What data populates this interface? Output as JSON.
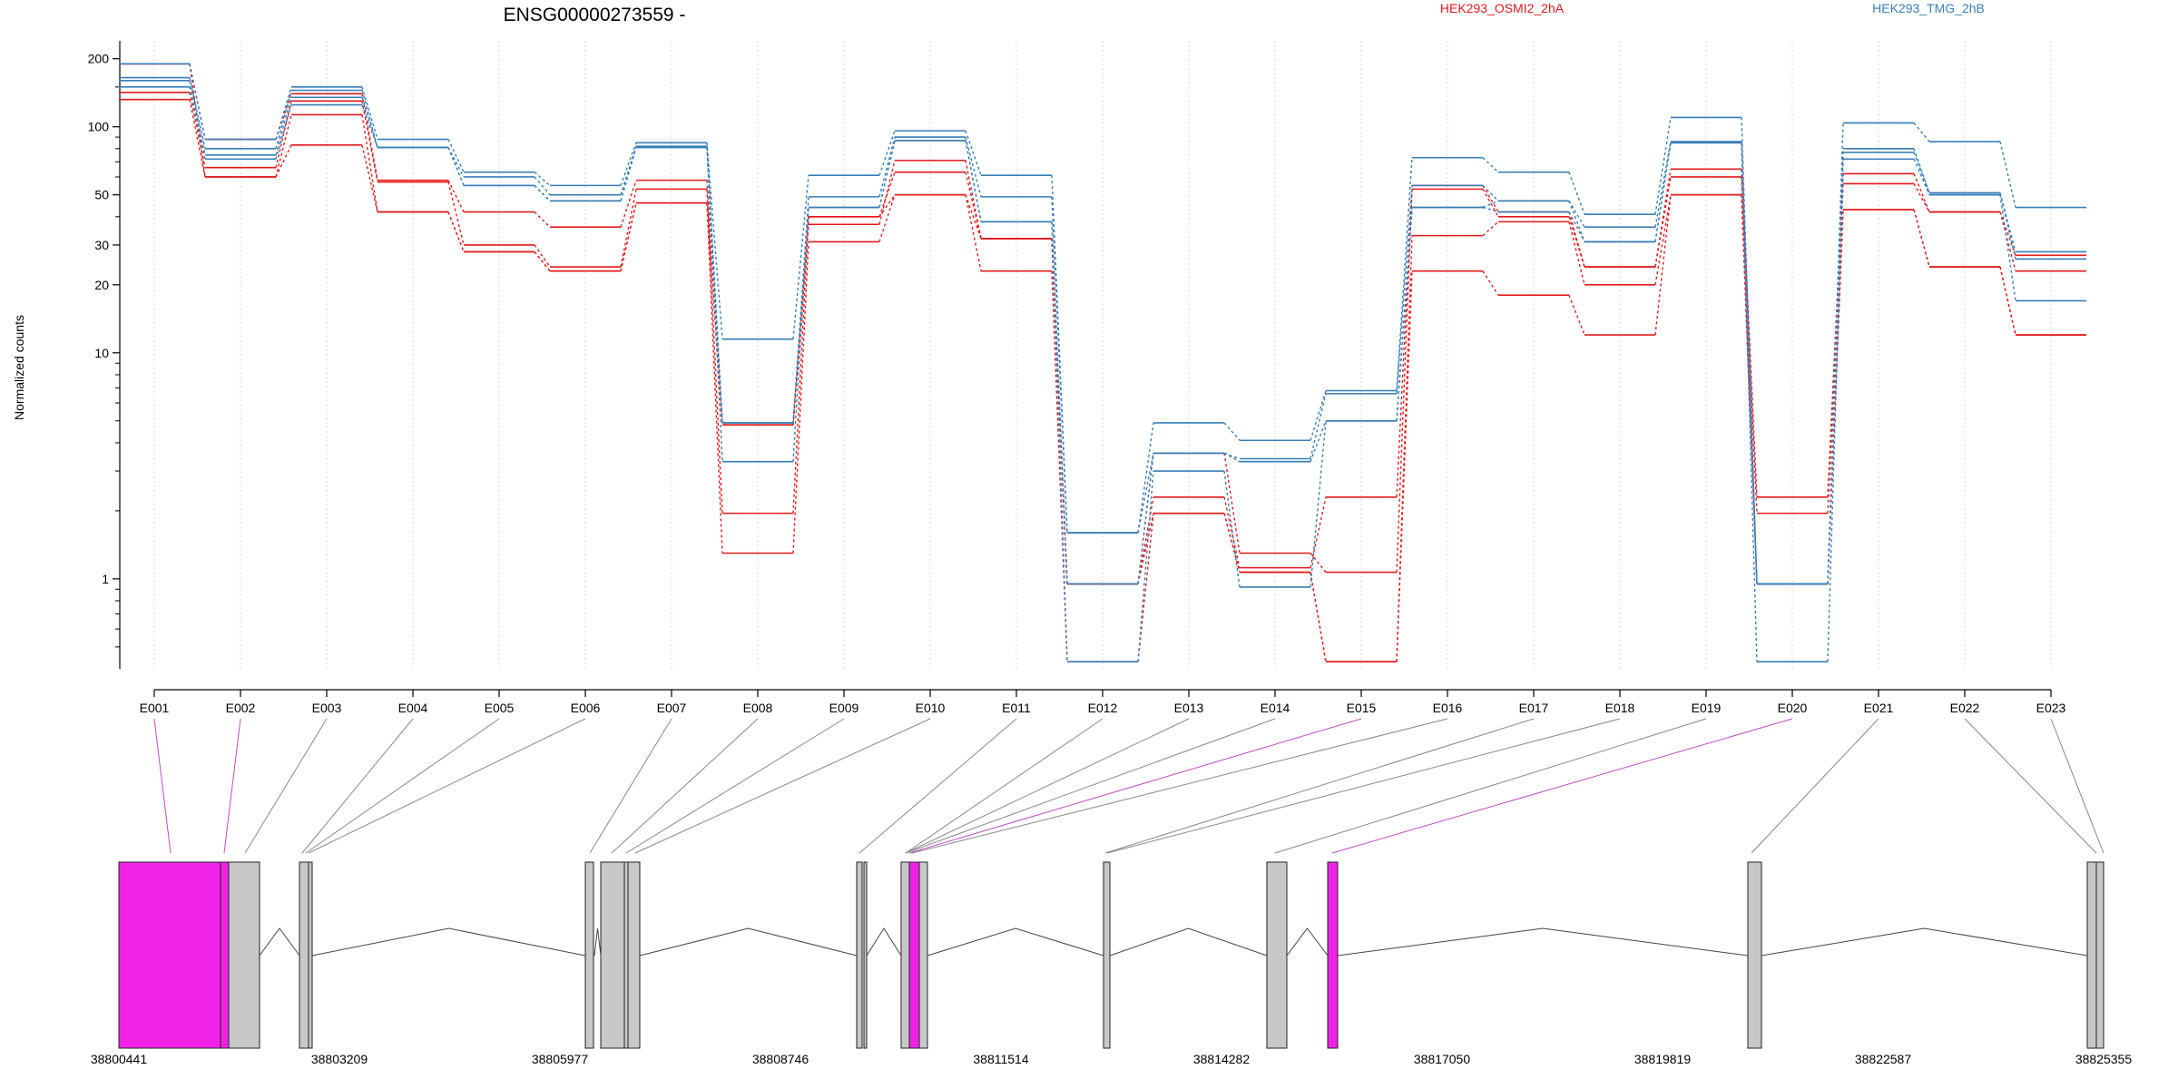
{
  "chart_data": {
    "type": "line",
    "title": "ENSG00000273559 -",
    "ylabel": "Normalized counts",
    "yscale": "log",
    "ylim": [
      0.4,
      240
    ],
    "yticks": [
      "1",
      "10",
      "20",
      "30",
      "50",
      "100",
      "200"
    ],
    "grid": "vertical dotted at exon centers",
    "legend_position": "top",
    "categories": [
      "E001",
      "E002",
      "E003",
      "E004",
      "E005",
      "E006",
      "E007",
      "E008",
      "E009",
      "E010",
      "E011",
      "E012",
      "E013",
      "E014",
      "E015",
      "E016",
      "E017",
      "E018",
      "E019",
      "E020",
      "E021",
      "E022",
      "E023"
    ],
    "series": [
      {
        "name": "HEK293_OSMI2_2hA",
        "color": "#e41a1c",
        "values": [
          190,
          88,
          140,
          58,
          42,
          36,
          58,
          4.8,
          37,
          71,
          32,
          0.95,
          2.3,
          1.12,
          2.3,
          55,
          42,
          24,
          65,
          2.3,
          62,
          42,
          27
        ]
      },
      {
        "name": "HEK293_OSMI2_2hA",
        "color": "#e41a1c",
        "values": [
          142,
          66,
          130,
          57,
          30,
          24,
          53,
          1.95,
          40,
          63,
          32,
          0.95,
          3.6,
          1.3,
          1.07,
          53,
          40,
          24,
          60,
          1.95,
          56,
          42,
          23
        ]
      },
      {
        "name": "HEK293_OSMI2_2hA",
        "color": "#e41a1c",
        "values": [
          132,
          60,
          113,
          42,
          28,
          23,
          46,
          1.3,
          31,
          50,
          23,
          0.43,
          1.95,
          1.07,
          0.43,
          33,
          38,
          20,
          50,
          0.95,
          43,
          24,
          12
        ]
      },
      {
        "name": "HEK293_OSMI2_2hA",
        "color": "#e41a1c",
        "values": [
          190,
          60,
          83,
          42,
          28,
          23,
          46,
          4.8,
          40,
          50,
          32,
          0.95,
          1.95,
          1.07,
          0.43,
          23,
          18,
          12,
          50,
          0.95,
          43,
          24,
          12
        ]
      },
      {
        "name": "HEK293_TMG_2hB",
        "color": "#377eb8",
        "values": [
          190,
          88,
          150,
          88,
          63,
          55,
          85,
          11.5,
          61,
          96,
          61,
          1.6,
          4.9,
          4.1,
          6.8,
          73,
          63,
          41,
          110,
          0.95,
          104,
          86,
          44
        ]
      },
      {
        "name": "HEK293_TMG_2hB",
        "color": "#377eb8",
        "values": [
          165,
          80,
          145,
          81,
          60,
          50,
          82,
          4.9,
          49,
          90,
          49,
          1.6,
          3.6,
          3.4,
          6.6,
          55,
          47,
          36,
          86,
          0.95,
          80,
          51,
          28
        ]
      },
      {
        "name": "HEK293_TMG_2hB",
        "color": "#377eb8",
        "values": [
          160,
          75,
          135,
          81,
          55,
          47,
          81,
          3.3,
          44,
          87,
          38,
          0.95,
          3.6,
          3.3,
          5.0,
          44,
          47,
          31,
          85,
          0.95,
          77,
          51,
          26
        ]
      },
      {
        "name": "HEK293_TMG_2hB",
        "color": "#377eb8",
        "values": [
          150,
          72,
          125,
          81,
          55,
          47,
          81,
          4.9,
          44,
          87,
          38,
          0.43,
          3.0,
          0.92,
          5.0,
          44,
          42,
          31,
          85,
          0.43,
          72,
          50,
          17
        ]
      }
    ],
    "legend": [
      {
        "label": "HEK293_OSMI2_2hA",
        "color": "#e41a1c"
      },
      {
        "label": "HEK293_TMG_2hB",
        "color": "#377eb8"
      }
    ]
  },
  "gene_model": {
    "coordinate_labels": [
      "38800441",
      "38803209",
      "38805977",
      "38808746",
      "38811514",
      "38814282",
      "38817050",
      "38819819",
      "38822587",
      "38825355"
    ],
    "highlight_color": "#f022e8",
    "exon_color": "#c8c8c8",
    "highlighted_exons": [
      "E001",
      "E002",
      "E015",
      "E016",
      "E020"
    ]
  }
}
